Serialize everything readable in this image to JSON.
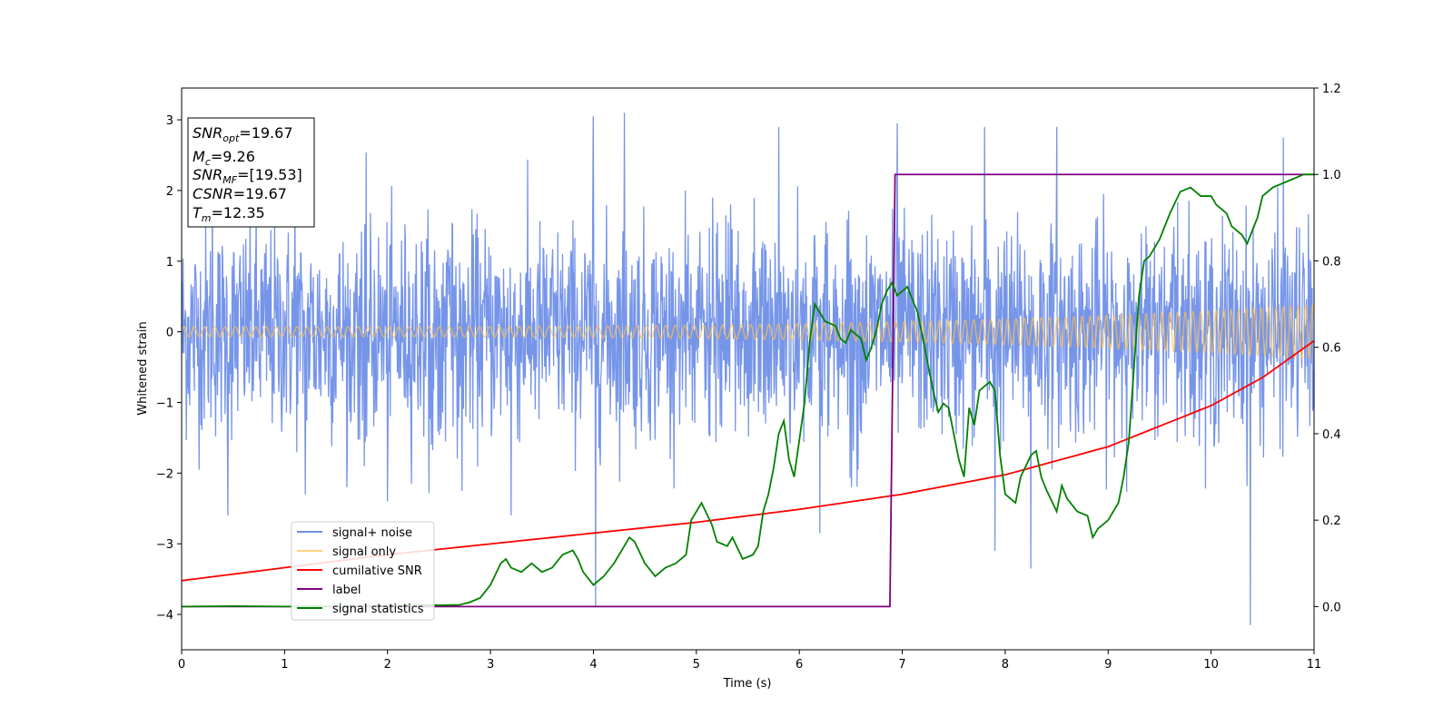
{
  "chart_data": {
    "type": "line",
    "xlabel": "Time (s)",
    "ylabel": "Whitened strain",
    "xlim": [
      0,
      11
    ],
    "ylim": [
      -4.5,
      3.45
    ],
    "y2lim": [
      -0.1,
      1.2
    ],
    "x_ticks": [
      0,
      1,
      2,
      3,
      4,
      5,
      6,
      7,
      8,
      9,
      10,
      11
    ],
    "y_ticks": [
      -4,
      -3,
      -2,
      -1,
      0,
      1,
      2,
      3
    ],
    "y_tick_labels": [
      "−4",
      "−3",
      "−2",
      "−1",
      "0",
      "1",
      "2",
      "3"
    ],
    "y2_ticks": [
      0.0,
      0.2,
      0.4,
      0.6,
      0.8,
      1.0,
      1.2
    ],
    "y2_tick_labels": [
      "0.0",
      "0.2",
      "0.4",
      "0.6",
      "0.8",
      "1.0",
      "1.2"
    ],
    "grid": false,
    "legend_position": "lower-left",
    "annotation": {
      "lines": [
        {
          "base": "SNR",
          "sub": "opt",
          "value": "=19.67"
        },
        {
          "base": "M",
          "sub": "c",
          "value": "=9.26"
        },
        {
          "base": "SNR",
          "sub": "MF",
          "value": "=[19.53]"
        },
        {
          "base": "CSNR",
          "sub": "",
          "value": "=19.67"
        },
        {
          "base": "T",
          "sub": "m",
          "value": "=12.35"
        }
      ]
    },
    "series": [
      {
        "name": "signal+ noise",
        "axis": "left",
        "color": "#6f8fe8",
        "style": "noise",
        "mean": 0,
        "envelope": 1.2,
        "notable_peaks": [
          {
            "x": 0.3,
            "y": 1.9
          },
          {
            "x": 0.45,
            "y": -2.6
          },
          {
            "x": 1.1,
            "y": 2.2
          },
          {
            "x": 1.2,
            "y": -2.3
          },
          {
            "x": 2.0,
            "y": -2.4
          },
          {
            "x": 3.2,
            "y": -2.6
          },
          {
            "x": 4.0,
            "y": 3.05
          },
          {
            "x": 4.02,
            "y": -3.9
          },
          {
            "x": 4.3,
            "y": 3.1
          },
          {
            "x": 5.8,
            "y": 2.9
          },
          {
            "x": 6.2,
            "y": -2.85
          },
          {
            "x": 6.95,
            "y": 2.95
          },
          {
            "x": 7.8,
            "y": 2.9
          },
          {
            "x": 7.9,
            "y": -3.1
          },
          {
            "x": 8.25,
            "y": -3.35
          },
          {
            "x": 8.5,
            "y": 2.9
          },
          {
            "x": 10.38,
            "y": -4.15
          },
          {
            "x": 10.7,
            "y": 2.75
          }
        ]
      },
      {
        "name": "signal only",
        "axis": "left",
        "color": "#ffc04d",
        "style": "chirp",
        "amplitude_start": 0.07,
        "amplitude_end": 0.38
      },
      {
        "name": "cumilative SNR",
        "axis": "right",
        "color": "#ff0000",
        "style": "line",
        "x": [
          0,
          1,
          2,
          3,
          4,
          5,
          6,
          7,
          8,
          9,
          10,
          10.5,
          11
        ],
        "values": [
          0.06,
          0.09,
          0.12,
          0.145,
          0.17,
          0.195,
          0.225,
          0.26,
          0.305,
          0.37,
          0.465,
          0.53,
          0.615
        ]
      },
      {
        "name": "label",
        "axis": "right",
        "color": "#800080",
        "style": "line",
        "x": [
          0,
          6.88,
          6.93,
          11
        ],
        "values": [
          0.0,
          0.0,
          1.0,
          1.0
        ]
      },
      {
        "name": "signal statistics",
        "axis": "right",
        "color": "#008000",
        "style": "line",
        "x": [
          0,
          0.5,
          1.0,
          1.5,
          2.0,
          2.3,
          2.5,
          2.7,
          2.8,
          2.9,
          3.0,
          3.1,
          3.15,
          3.2,
          3.3,
          3.4,
          3.5,
          3.6,
          3.7,
          3.8,
          3.85,
          3.9,
          4.0,
          4.1,
          4.2,
          4.3,
          4.35,
          4.4,
          4.5,
          4.6,
          4.7,
          4.8,
          4.9,
          4.95,
          5.05,
          5.15,
          5.2,
          5.3,
          5.35,
          5.45,
          5.55,
          5.6,
          5.65,
          5.7,
          5.75,
          5.8,
          5.85,
          5.9,
          5.95,
          6.05,
          6.1,
          6.15,
          6.25,
          6.35,
          6.4,
          6.45,
          6.5,
          6.55,
          6.6,
          6.65,
          6.7,
          6.75,
          6.8,
          6.85,
          6.9,
          6.95,
          7.0,
          7.05,
          7.1,
          7.15,
          7.2,
          7.3,
          7.35,
          7.4,
          7.45,
          7.5,
          7.55,
          7.6,
          7.65,
          7.7,
          7.75,
          7.85,
          7.9,
          7.95,
          8.0,
          8.05,
          8.1,
          8.15,
          8.25,
          8.3,
          8.35,
          8.4,
          8.5,
          8.55,
          8.6,
          8.7,
          8.8,
          8.85,
          8.9,
          9.0,
          9.1,
          9.15,
          9.2,
          9.25,
          9.3,
          9.35,
          9.4,
          9.5,
          9.55,
          9.6,
          9.7,
          9.8,
          9.85,
          9.9,
          10.0,
          10.05,
          10.1,
          10.15,
          10.2,
          10.3,
          10.35,
          10.45,
          10.5,
          10.6,
          10.7,
          10.8,
          10.9,
          11.0
        ],
        "values": [
          0.0,
          0.001,
          0.0,
          0.001,
          0.002,
          0.004,
          0.003,
          0.004,
          0.01,
          0.02,
          0.05,
          0.1,
          0.11,
          0.09,
          0.08,
          0.1,
          0.08,
          0.09,
          0.12,
          0.13,
          0.11,
          0.08,
          0.05,
          0.07,
          0.1,
          0.14,
          0.16,
          0.15,
          0.1,
          0.07,
          0.09,
          0.1,
          0.12,
          0.2,
          0.24,
          0.19,
          0.15,
          0.14,
          0.16,
          0.11,
          0.12,
          0.14,
          0.22,
          0.26,
          0.32,
          0.4,
          0.43,
          0.34,
          0.3,
          0.47,
          0.61,
          0.7,
          0.66,
          0.65,
          0.62,
          0.61,
          0.64,
          0.63,
          0.62,
          0.57,
          0.6,
          0.64,
          0.7,
          0.73,
          0.75,
          0.72,
          0.73,
          0.74,
          0.71,
          0.68,
          0.62,
          0.5,
          0.45,
          0.47,
          0.46,
          0.4,
          0.34,
          0.3,
          0.46,
          0.42,
          0.5,
          0.52,
          0.5,
          0.35,
          0.26,
          0.25,
          0.24,
          0.3,
          0.35,
          0.36,
          0.3,
          0.27,
          0.22,
          0.28,
          0.25,
          0.22,
          0.21,
          0.16,
          0.18,
          0.2,
          0.24,
          0.3,
          0.38,
          0.55,
          0.72,
          0.8,
          0.81,
          0.85,
          0.88,
          0.91,
          0.96,
          0.97,
          0.96,
          0.95,
          0.95,
          0.93,
          0.92,
          0.91,
          0.88,
          0.86,
          0.84,
          0.9,
          0.95,
          0.97,
          0.98,
          0.99,
          1.0,
          1.0
        ]
      }
    ]
  }
}
